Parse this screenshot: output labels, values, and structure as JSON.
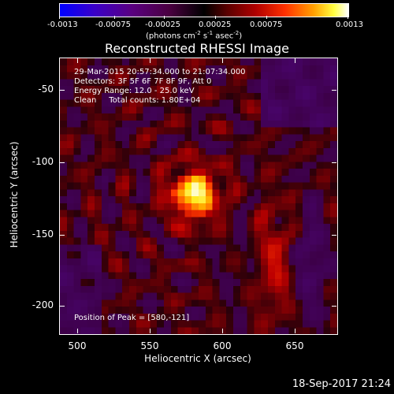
{
  "colorbar": {
    "tick_labels": [
      "-0.0013",
      "-0.00075",
      "-0.00025",
      "0.00025",
      "0.00075",
      "0.0013"
    ],
    "units": "(photons cm",
    "units_exp1": "-2",
    "units_mid": " s",
    "units_exp2": "-1",
    "units_end": " asec",
    "units_exp3": "-2",
    "units_close": ")"
  },
  "title": "Reconstructed RHESSI Image",
  "info": {
    "line1": "29-Mar-2015 20:57:34.000 to 21:07:34.000",
    "line2": "Detectors: 3F 5F 6F 7F 8F 9F, Att 0",
    "line3": "Energy Range: 12.0 - 25.0 keV",
    "line4": "Clean     Total counts: 1.80E+04",
    "peak": "Position of Peak = [580,-121]"
  },
  "axes": {
    "xlabel": "Heliocentric X (arcsec)",
    "ylabel": "Heliocentric Y (arcsec)",
    "xticks": [
      "500",
      "550",
      "600",
      "650"
    ],
    "yticks": [
      "-50",
      "-100",
      "-150",
      "-200"
    ]
  },
  "image_data": {
    "peak_position": [
      580,
      -121
    ],
    "xlim": [
      490,
      680
    ],
    "ylim": [
      -221,
      -28
    ]
  },
  "timestamp": "18-Sep-2017 21:24"
}
